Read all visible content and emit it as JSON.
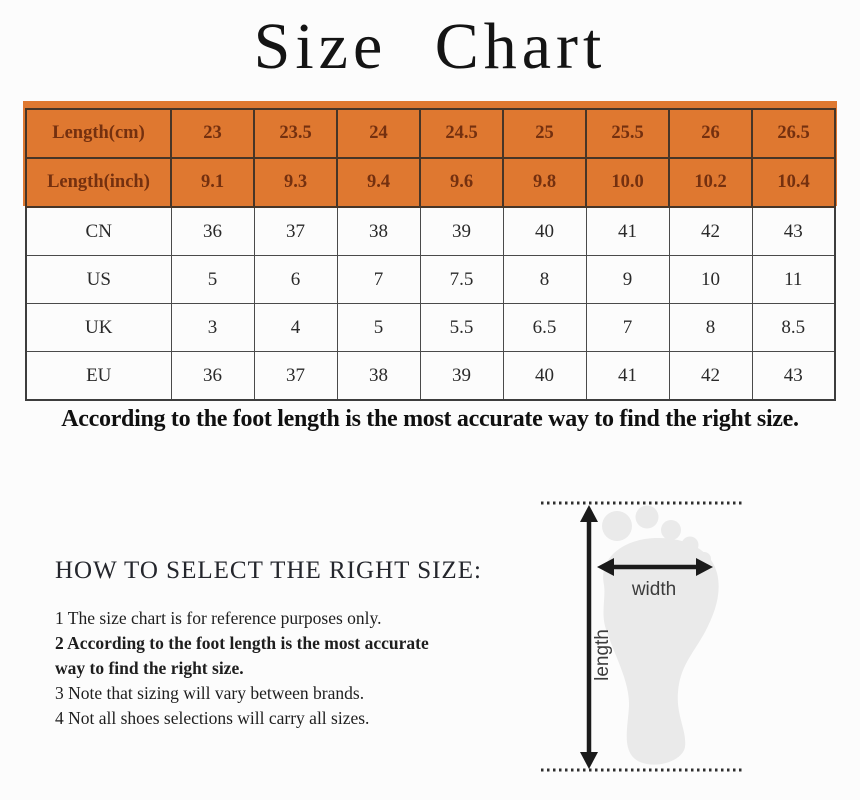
{
  "title": "Size Chart",
  "size_table": {
    "rows": [
      {
        "label": "Length(cm)",
        "highlight": true,
        "values": [
          "23",
          "23.5",
          "24",
          "24.5",
          "25",
          "25.5",
          "26",
          "26.5"
        ]
      },
      {
        "label": "Length(inch)",
        "highlight": true,
        "values": [
          "9.1",
          "9.3",
          "9.4",
          "9.6",
          "9.8",
          "10.0",
          "10.2",
          "10.4"
        ]
      },
      {
        "label": "CN",
        "highlight": false,
        "values": [
          "36",
          "37",
          "38",
          "39",
          "40",
          "41",
          "42",
          "43"
        ]
      },
      {
        "label": "US",
        "highlight": false,
        "values": [
          "5",
          "6",
          "7",
          "7.5",
          "8",
          "9",
          "10",
          "11"
        ]
      },
      {
        "label": "UK",
        "highlight": false,
        "values": [
          "3",
          "4",
          "5",
          "5.5",
          "6.5",
          "7",
          "8",
          "8.5"
        ]
      },
      {
        "label": "EU",
        "highlight": false,
        "values": [
          "36",
          "37",
          "38",
          "39",
          "40",
          "41",
          "42",
          "43"
        ]
      }
    ]
  },
  "note": "According to the foot length is the most accurate way to find the right size.",
  "how_to": {
    "heading": "HOW TO SELECT THE RIGHT SIZE:",
    "items": [
      {
        "number": "1",
        "text": "The size chart is for reference purposes only.",
        "bold": false
      },
      {
        "number": "2",
        "text": "According to the foot length is the most accurate way to find the right size.",
        "bold": true
      },
      {
        "number": "3",
        "text": "Note that sizing will vary between brands.",
        "bold": false
      },
      {
        "number": "4",
        "text": "Not all shoes selections will carry all sizes.",
        "bold": false
      }
    ]
  },
  "diagram": {
    "width_label": "width",
    "length_label": "length"
  },
  "colors": {
    "highlight_bg": "#DF7830",
    "highlight_text": "#74300F",
    "footprint": "#EAEAEA",
    "arrow": "#1b1b1b"
  }
}
